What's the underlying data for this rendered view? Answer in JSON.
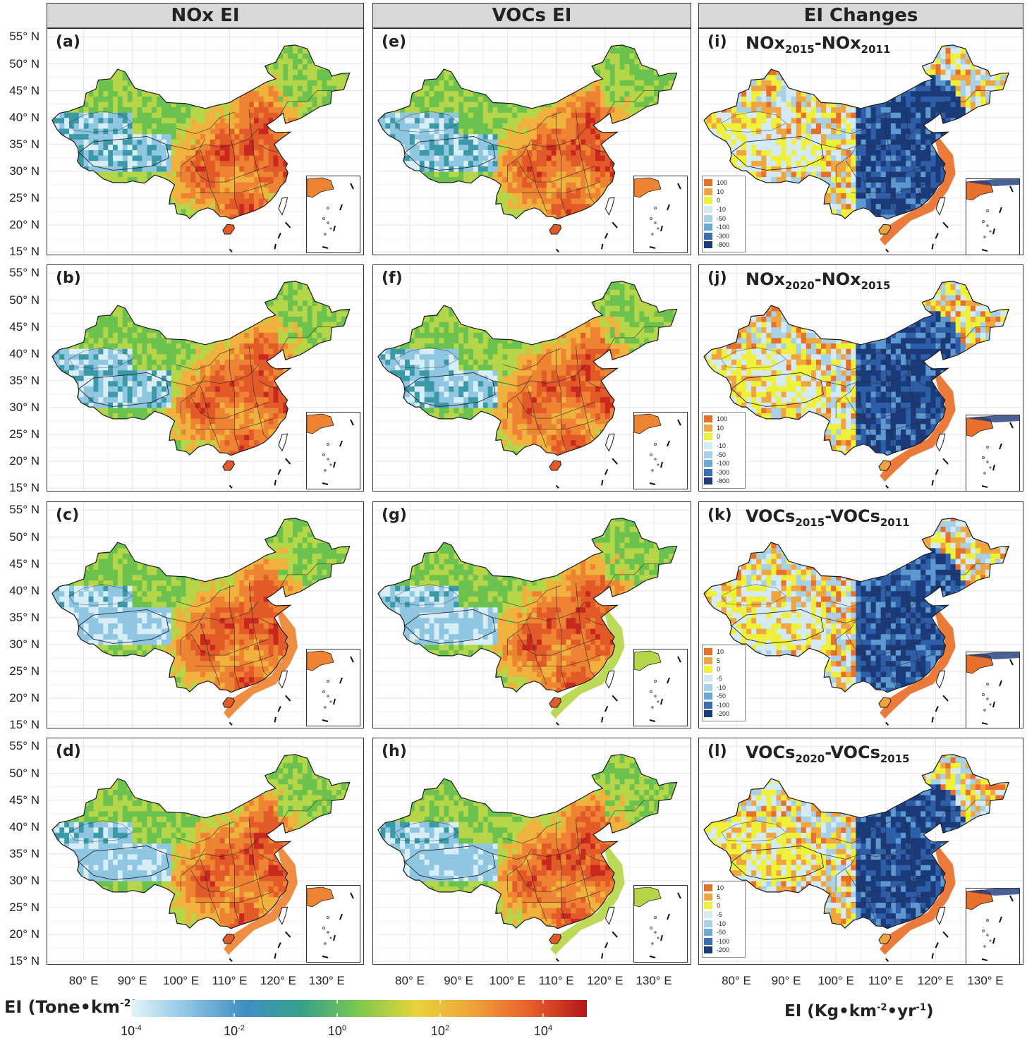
{
  "headers": {
    "nox": "NOx EI",
    "vocs": "VOCs EI",
    "changes": "EI Changes"
  },
  "y_ticks": [
    "55° N",
    "50° N",
    "45° N",
    "40° N",
    "35° N",
    "30° N",
    "25° N",
    "20° N",
    "15° N"
  ],
  "x_ticks": [
    "80° E",
    "90° E",
    "100° E",
    "110° E",
    "120° E",
    "130° E"
  ],
  "panels": {
    "a": "(a)",
    "b": "(b)",
    "c": "(c)",
    "d": "(d)",
    "e": "(e)",
    "f": "(f)",
    "g": "(g)",
    "h": "(h)",
    "i": "(i)",
    "j": "(j)",
    "k": "(k)",
    "l": "(l)"
  },
  "diff_titles": {
    "i": {
      "a": "NOx",
      "a_sub": "2015",
      "sep": "-",
      "b": "NOx",
      "b_sub": "2011"
    },
    "j": {
      "a": "NOx",
      "a_sub": "2020",
      "sep": "-",
      "b": "NOx",
      "b_sub": "2015"
    },
    "k": {
      "a": "VOCs",
      "a_sub": "2015",
      "sep": "-",
      "b": "VOCs",
      "b_sub": "2011"
    },
    "l": {
      "a": "VOCs",
      "a_sub": "2020",
      "sep": "-",
      "b": "VOCs",
      "b_sub": "2015"
    }
  },
  "legend_nox": [
    "100",
    "10",
    "0",
    "-10",
    "-50",
    "-100",
    "-300",
    "-800"
  ],
  "legend_vocs": [
    "10",
    "5",
    "0",
    "-5",
    "-10",
    "-50",
    "-100",
    "-200"
  ],
  "legend_colors": [
    "#e8702a",
    "#f0a640",
    "#eef03a",
    "#d4eaf4",
    "#a8d0e6",
    "#6aa9d6",
    "#3a6fb5",
    "#1b3a7a"
  ],
  "colorbar": {
    "title": "EI (Tone•km",
    "title_sup": "-2",
    "title_end": ")",
    "ticks": [
      {
        "base": "10",
        "exp": "-4"
      },
      {
        "base": "10",
        "exp": "-2"
      },
      {
        "base": "10",
        "exp": "0"
      },
      {
        "base": "10",
        "exp": "2"
      },
      {
        "base": "10",
        "exp": "4"
      }
    ],
    "colors": [
      "#e4f4fa",
      "#8cc4e4",
      "#3f8fc4",
      "#35a18a",
      "#7cc94d",
      "#e8d43c",
      "#f0a33a",
      "#e8602a",
      "#b4161a"
    ]
  },
  "change_unit": {
    "a": "EI (Kg•km",
    "a_sup": "-2",
    "b": "•yr",
    "b_sup": "-1",
    "c": ")"
  }
}
